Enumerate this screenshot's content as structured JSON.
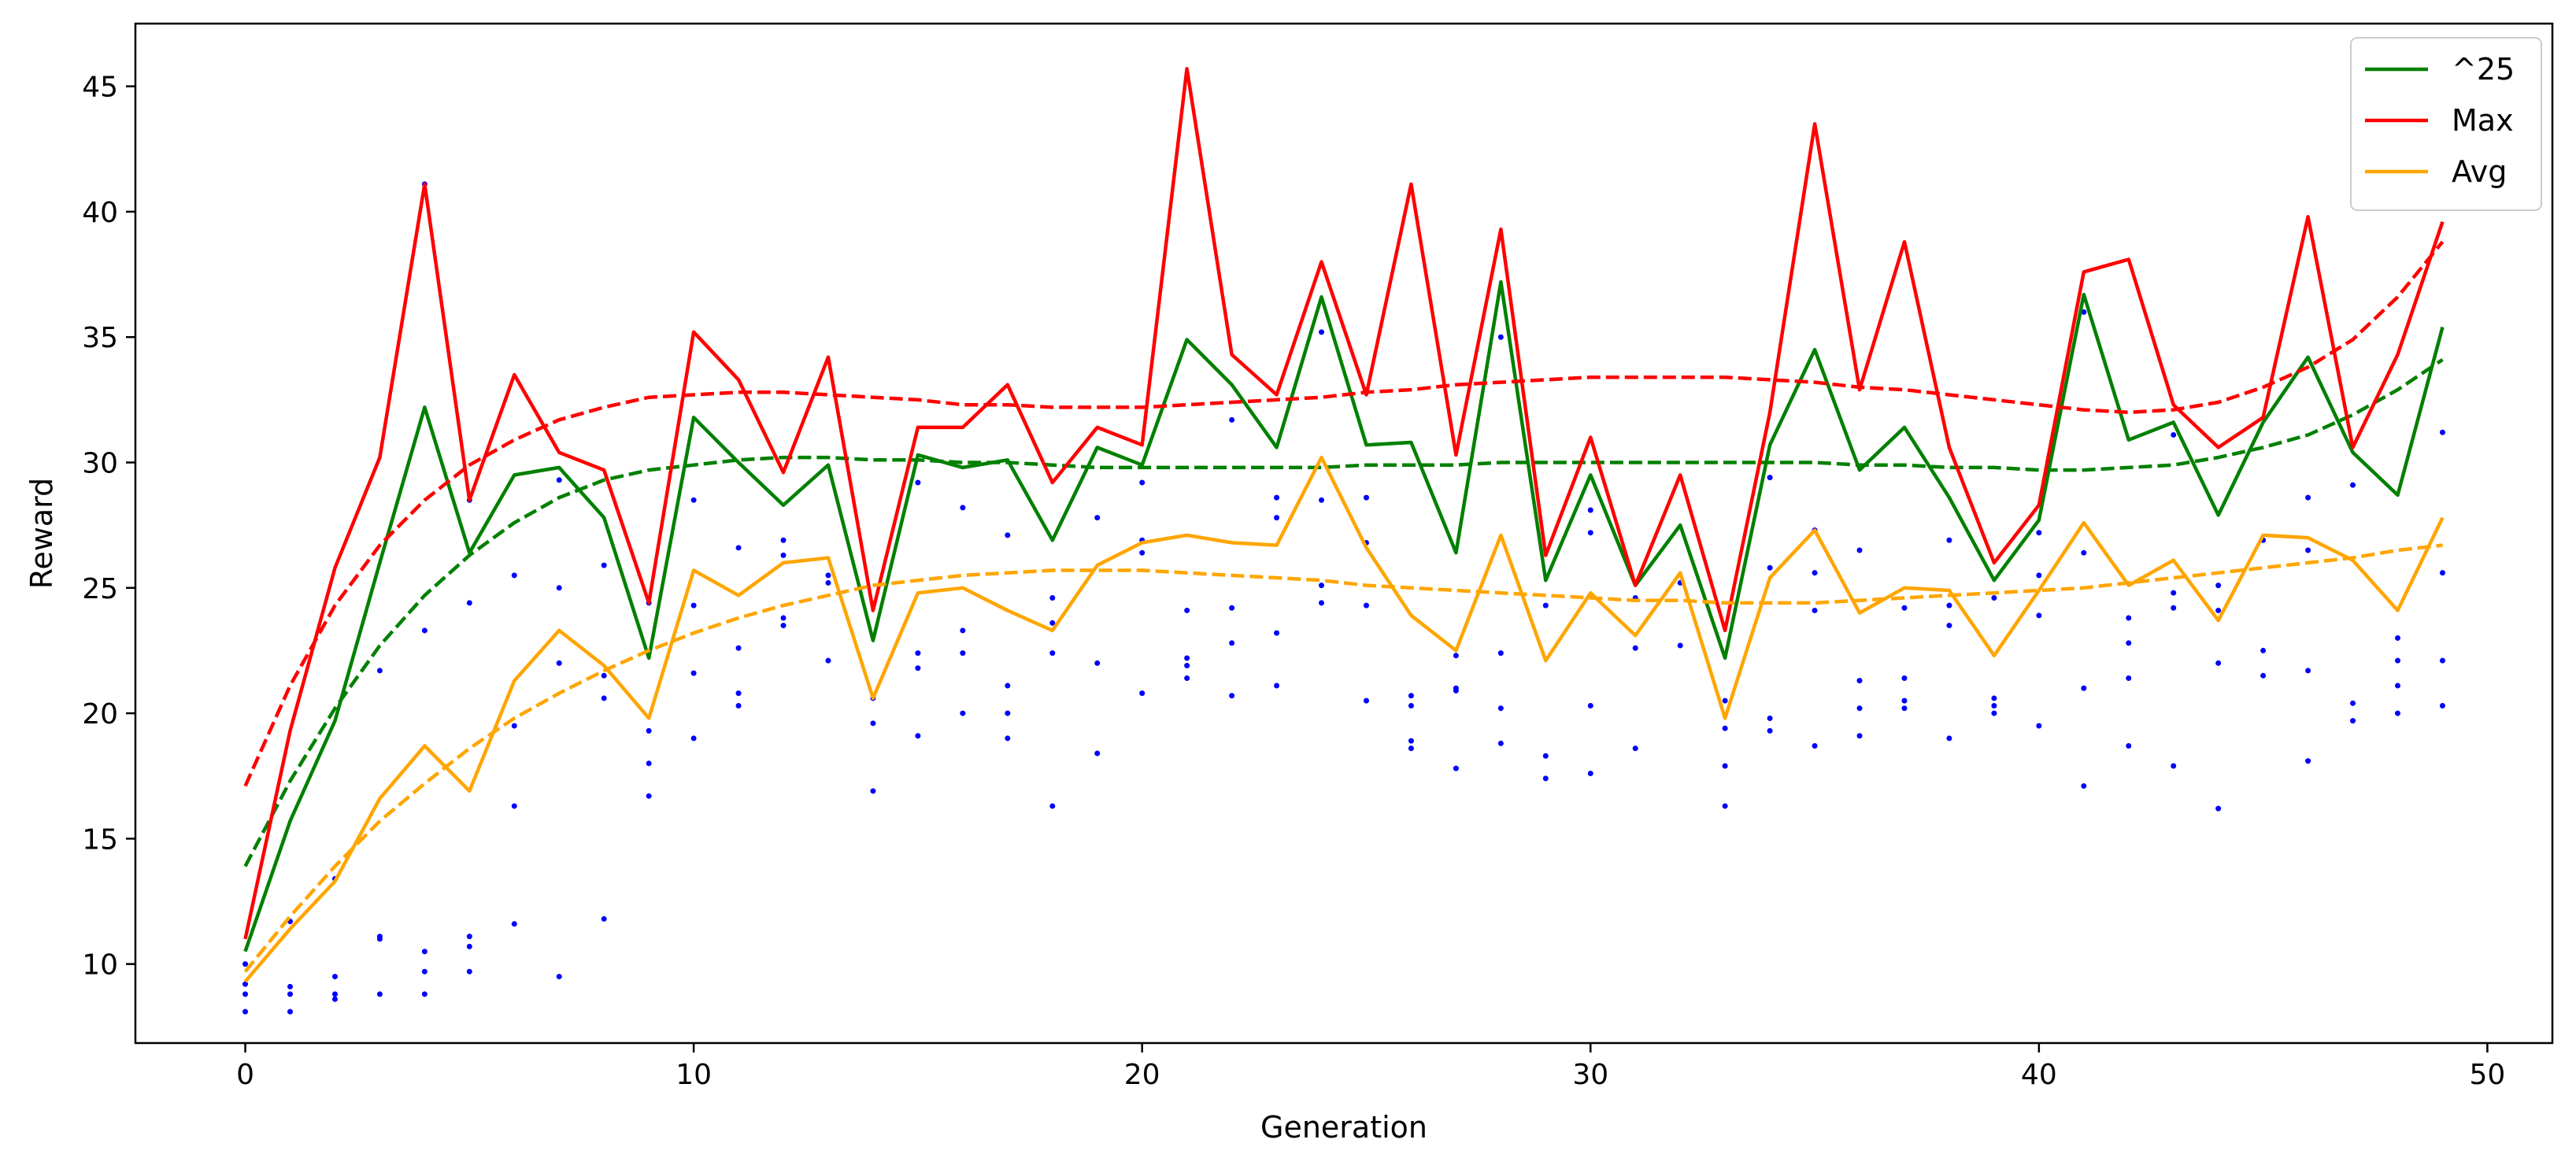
{
  "chart_data": {
    "type": "line",
    "title": "",
    "xlabel": "Generation",
    "ylabel": "Reward",
    "xlim": [
      -2.45,
      51.45
    ],
    "ylim": [
      6.85,
      47.5
    ],
    "xticks": [
      0,
      10,
      20,
      30,
      40,
      50
    ],
    "yticks": [
      10,
      15,
      20,
      25,
      30,
      35,
      40,
      45
    ],
    "grid": false,
    "legend": {
      "placement": "top-right",
      "entries": [
        "^25",
        "Max",
        "Avg"
      ]
    },
    "x": [
      0,
      1,
      2,
      3,
      4,
      5,
      6,
      7,
      8,
      9,
      10,
      11,
      12,
      13,
      14,
      15,
      16,
      17,
      18,
      19,
      20,
      21,
      22,
      23,
      24,
      25,
      26,
      27,
      28,
      29,
      30,
      31,
      32,
      33,
      34,
      35,
      36,
      37,
      38,
      39,
      40,
      41,
      42,
      43,
      44,
      45,
      46,
      47,
      48,
      49
    ],
    "series": [
      {
        "name": "^25",
        "color": "#008000",
        "values": [
          10.5,
          15.7,
          19.7,
          26.0,
          32.2,
          26.4,
          29.5,
          29.8,
          27.8,
          22.2,
          31.8,
          30.0,
          28.3,
          29.9,
          22.9,
          30.3,
          29.8,
          30.1,
          26.9,
          30.6,
          29.9,
          34.9,
          33.1,
          30.6,
          36.6,
          30.7,
          30.8,
          26.4,
          37.2,
          25.3,
          29.5,
          25.1,
          27.5,
          22.2,
          30.7,
          34.5,
          29.7,
          31.4,
          28.6,
          25.3,
          27.7,
          36.7,
          30.9,
          31.6,
          27.9,
          31.6,
          34.2,
          30.4,
          28.7,
          35.4
        ],
        "trend": [
          13.9,
          17.3,
          20.2,
          22.7,
          24.7,
          26.3,
          27.6,
          28.6,
          29.3,
          29.7,
          29.9,
          30.1,
          30.2,
          30.2,
          30.1,
          30.1,
          30.0,
          30.0,
          29.9,
          29.8,
          29.8,
          29.8,
          29.8,
          29.8,
          29.8,
          29.9,
          29.9,
          29.9,
          30.0,
          30.0,
          30.0,
          30.0,
          30.0,
          30.0,
          30.0,
          30.0,
          29.9,
          29.9,
          29.8,
          29.8,
          29.7,
          29.7,
          29.8,
          29.9,
          30.2,
          30.6,
          31.1,
          31.9,
          32.9,
          34.1
        ]
      },
      {
        "name": "Max",
        "color": "#ff0000",
        "values": [
          11.0,
          19.3,
          25.8,
          30.2,
          41.1,
          28.5,
          33.5,
          30.4,
          29.7,
          24.4,
          35.2,
          33.3,
          29.6,
          34.2,
          24.1,
          31.4,
          31.4,
          33.1,
          29.2,
          31.4,
          30.7,
          45.7,
          34.3,
          32.7,
          38.0,
          32.7,
          41.1,
          30.3,
          39.3,
          26.3,
          31.0,
          25.1,
          29.5,
          23.3,
          32.0,
          43.5,
          32.9,
          38.8,
          30.6,
          26.0,
          28.3,
          37.6,
          38.1,
          32.3,
          30.6,
          31.8,
          39.8,
          30.6,
          34.3,
          39.6
        ],
        "trend": [
          17.1,
          21.1,
          24.3,
          26.7,
          28.5,
          29.9,
          30.9,
          31.7,
          32.2,
          32.6,
          32.7,
          32.8,
          32.8,
          32.7,
          32.6,
          32.5,
          32.3,
          32.3,
          32.2,
          32.2,
          32.2,
          32.3,
          32.4,
          32.5,
          32.6,
          32.8,
          32.9,
          33.1,
          33.2,
          33.3,
          33.4,
          33.4,
          33.4,
          33.4,
          33.3,
          33.2,
          33.0,
          32.9,
          32.7,
          32.5,
          32.3,
          32.1,
          32.0,
          32.1,
          32.4,
          33.0,
          33.8,
          34.9,
          36.6,
          38.8
        ]
      },
      {
        "name": "Avg",
        "color": "#ffa500",
        "values": [
          9.3,
          11.4,
          13.3,
          16.6,
          18.7,
          16.9,
          21.3,
          23.3,
          21.9,
          19.8,
          25.7,
          24.7,
          26.0,
          26.2,
          20.6,
          24.8,
          25.0,
          24.1,
          23.3,
          25.9,
          26.8,
          27.1,
          26.8,
          26.7,
          30.2,
          26.6,
          23.9,
          22.5,
          27.1,
          22.1,
          24.8,
          23.1,
          25.6,
          19.8,
          25.4,
          27.3,
          24.0,
          25.0,
          24.9,
          22.3,
          24.9,
          27.6,
          25.1,
          26.1,
          23.7,
          27.1,
          27.0,
          26.1,
          24.1,
          27.8
        ],
        "trend": [
          9.7,
          11.9,
          13.9,
          15.7,
          17.2,
          18.6,
          19.8,
          20.8,
          21.7,
          22.5,
          23.2,
          23.8,
          24.3,
          24.7,
          25.1,
          25.3,
          25.5,
          25.6,
          25.7,
          25.7,
          25.7,
          25.6,
          25.5,
          25.4,
          25.3,
          25.1,
          25.0,
          24.9,
          24.8,
          24.7,
          24.6,
          24.5,
          24.5,
          24.4,
          24.4,
          24.4,
          24.5,
          24.6,
          24.7,
          24.8,
          24.9,
          25.0,
          25.2,
          25.4,
          25.6,
          25.8,
          26.0,
          26.2,
          26.5,
          26.7
        ]
      }
    ],
    "scatter": {
      "color": "#0000ff",
      "points": [
        [
          0,
          8.1
        ],
        [
          0,
          8.8
        ],
        [
          0,
          9.2
        ],
        [
          0,
          10.0
        ],
        [
          1,
          8.1
        ],
        [
          1,
          8.8
        ],
        [
          1,
          9.1
        ],
        [
          1,
          11.7
        ],
        [
          2,
          8.6
        ],
        [
          2,
          8.8
        ],
        [
          2,
          9.5
        ],
        [
          2,
          13.4
        ],
        [
          3,
          8.8
        ],
        [
          3,
          11.0
        ],
        [
          3,
          11.1
        ],
        [
          3,
          21.7
        ],
        [
          4,
          8.8
        ],
        [
          4,
          9.7
        ],
        [
          4,
          10.5
        ],
        [
          4,
          23.3
        ],
        [
          4,
          41.1
        ],
        [
          5,
          9.7
        ],
        [
          5,
          10.7
        ],
        [
          5,
          11.1
        ],
        [
          5,
          24.4
        ],
        [
          5,
          28.5
        ],
        [
          6,
          11.6
        ],
        [
          6,
          16.3
        ],
        [
          6,
          19.5
        ],
        [
          6,
          25.5
        ],
        [
          7,
          9.5
        ],
        [
          7,
          22.0
        ],
        [
          7,
          25.0
        ],
        [
          7,
          29.3
        ],
        [
          8,
          11.8
        ],
        [
          8,
          20.6
        ],
        [
          8,
          21.5
        ],
        [
          8,
          25.9
        ],
        [
          9,
          16.7
        ],
        [
          9,
          18.0
        ],
        [
          9,
          19.3
        ],
        [
          9,
          24.4
        ],
        [
          10,
          19.0
        ],
        [
          10,
          21.6
        ],
        [
          10,
          24.3
        ],
        [
          10,
          28.5
        ],
        [
          11,
          20.3
        ],
        [
          11,
          20.8
        ],
        [
          11,
          22.6
        ],
        [
          11,
          26.6
        ],
        [
          12,
          23.5
        ],
        [
          12,
          23.8
        ],
        [
          12,
          26.3
        ],
        [
          12,
          26.9
        ],
        [
          13,
          22.1
        ],
        [
          13,
          25.2
        ],
        [
          13,
          25.5
        ],
        [
          14,
          16.9
        ],
        [
          14,
          19.6
        ],
        [
          14,
          20.6
        ],
        [
          15,
          19.1
        ],
        [
          15,
          21.8
        ],
        [
          15,
          22.4
        ],
        [
          15,
          29.2
        ],
        [
          16,
          20.0
        ],
        [
          16,
          22.4
        ],
        [
          16,
          23.3
        ],
        [
          16,
          28.2
        ],
        [
          17,
          19.0
        ],
        [
          17,
          20.0
        ],
        [
          17,
          21.1
        ],
        [
          17,
          27.1
        ],
        [
          18,
          16.3
        ],
        [
          18,
          22.4
        ],
        [
          18,
          23.6
        ],
        [
          18,
          24.6
        ],
        [
          19,
          18.4
        ],
        [
          19,
          22.0
        ],
        [
          19,
          27.8
        ],
        [
          20,
          20.8
        ],
        [
          20,
          26.4
        ],
        [
          20,
          26.9
        ],
        [
          20,
          29.2
        ],
        [
          21,
          21.4
        ],
        [
          21,
          21.9
        ],
        [
          21,
          22.2
        ],
        [
          21,
          24.1
        ],
        [
          22,
          20.7
        ],
        [
          22,
          22.8
        ],
        [
          22,
          24.2
        ],
        [
          22,
          31.7
        ],
        [
          23,
          21.1
        ],
        [
          23,
          23.2
        ],
        [
          23,
          27.8
        ],
        [
          23,
          28.6
        ],
        [
          24,
          24.4
        ],
        [
          24,
          25.1
        ],
        [
          24,
          28.5
        ],
        [
          24,
          35.2
        ],
        [
          25,
          20.5
        ],
        [
          25,
          24.3
        ],
        [
          25,
          26.8
        ],
        [
          25,
          28.6
        ],
        [
          26,
          18.6
        ],
        [
          26,
          18.9
        ],
        [
          26,
          20.3
        ],
        [
          26,
          20.7
        ],
        [
          27,
          17.8
        ],
        [
          27,
          20.9
        ],
        [
          27,
          21.0
        ],
        [
          27,
          22.3
        ],
        [
          28,
          18.8
        ],
        [
          28,
          20.2
        ],
        [
          28,
          22.4
        ],
        [
          28,
          35.0
        ],
        [
          29,
          17.4
        ],
        [
          29,
          18.3
        ],
        [
          29,
          24.3
        ],
        [
          30,
          17.6
        ],
        [
          30,
          20.3
        ],
        [
          30,
          27.2
        ],
        [
          30,
          28.1
        ],
        [
          31,
          18.6
        ],
        [
          31,
          22.6
        ],
        [
          31,
          24.6
        ],
        [
          32,
          22.7
        ],
        [
          32,
          25.2
        ],
        [
          33,
          16.3
        ],
        [
          33,
          17.9
        ],
        [
          33,
          19.4
        ],
        [
          33,
          20.5
        ],
        [
          34,
          19.3
        ],
        [
          34,
          19.8
        ],
        [
          34,
          25.8
        ],
        [
          34,
          29.4
        ],
        [
          35,
          18.7
        ],
        [
          35,
          24.1
        ],
        [
          35,
          25.6
        ],
        [
          35,
          27.3
        ],
        [
          36,
          19.1
        ],
        [
          36,
          20.2
        ],
        [
          36,
          21.3
        ],
        [
          36,
          26.5
        ],
        [
          37,
          20.2
        ],
        [
          37,
          20.5
        ],
        [
          37,
          21.4
        ],
        [
          37,
          24.2
        ],
        [
          38,
          19.0
        ],
        [
          38,
          23.5
        ],
        [
          38,
          24.3
        ],
        [
          38,
          26.9
        ],
        [
          39,
          20.0
        ],
        [
          39,
          20.3
        ],
        [
          39,
          20.6
        ],
        [
          39,
          24.6
        ],
        [
          40,
          19.5
        ],
        [
          40,
          23.9
        ],
        [
          40,
          25.5
        ],
        [
          40,
          27.2
        ],
        [
          41,
          17.1
        ],
        [
          41,
          21.0
        ],
        [
          41,
          26.4
        ],
        [
          41,
          36.0
        ],
        [
          42,
          18.7
        ],
        [
          42,
          21.4
        ],
        [
          42,
          22.8
        ],
        [
          42,
          23.8
        ],
        [
          43,
          17.9
        ],
        [
          43,
          24.2
        ],
        [
          43,
          24.8
        ],
        [
          43,
          31.1
        ],
        [
          44,
          16.2
        ],
        [
          44,
          22.0
        ],
        [
          44,
          24.1
        ],
        [
          44,
          25.1
        ],
        [
          45,
          21.5
        ],
        [
          45,
          22.5
        ],
        [
          45,
          26.9
        ],
        [
          46,
          18.1
        ],
        [
          46,
          21.7
        ],
        [
          46,
          26.5
        ],
        [
          46,
          28.6
        ],
        [
          47,
          19.7
        ],
        [
          47,
          20.4
        ],
        [
          47,
          29.1
        ],
        [
          48,
          20.0
        ],
        [
          48,
          21.1
        ],
        [
          48,
          22.1
        ],
        [
          48,
          23.0
        ],
        [
          49,
          20.3
        ],
        [
          49,
          22.1
        ],
        [
          49,
          25.6
        ],
        [
          49,
          31.2
        ]
      ]
    }
  }
}
